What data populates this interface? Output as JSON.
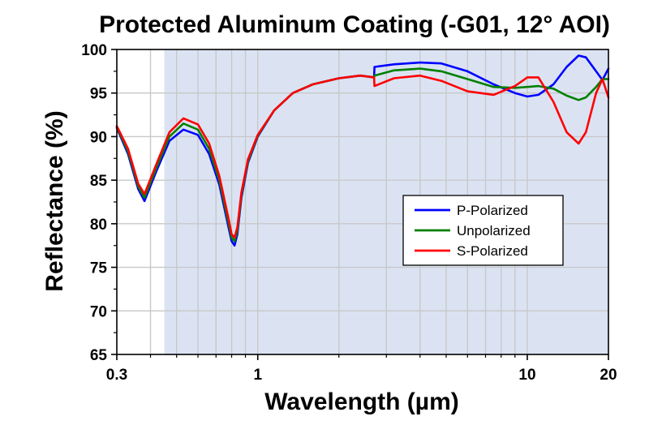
{
  "chart_data": {
    "type": "line",
    "title": "Protected Aluminum Coating (-G01, 12° AOI)",
    "xlabel": "Wavelength (µm)",
    "ylabel": "Reflectance (%)",
    "x_scale": "log",
    "xlim": [
      0.3,
      20
    ],
    "ylim": [
      65,
      100
    ],
    "x_ticks": [
      0.3,
      1,
      10,
      20
    ],
    "x_tick_labels": [
      "0.3",
      "1",
      "10",
      "20"
    ],
    "y_ticks": [
      65,
      70,
      75,
      80,
      85,
      90,
      95,
      100
    ],
    "y_tick_labels": [
      "65",
      "70",
      "75",
      "80",
      "85",
      "90",
      "95",
      "100"
    ],
    "grid": true,
    "shaded_region": {
      "x_from": 0.45,
      "x_to": 20,
      "color": "#dbe3f3"
    },
    "legend_position": "center-right",
    "series": [
      {
        "name": "P-Polarized",
        "color": "#0000ff",
        "x": [
          0.3,
          0.33,
          0.36,
          0.38,
          0.42,
          0.47,
          0.53,
          0.6,
          0.66,
          0.72,
          0.78,
          0.8,
          0.82,
          0.84,
          0.87,
          0.92,
          1.0,
          1.15,
          1.35,
          1.6,
          2.0,
          2.4,
          2.7,
          2.71,
          3.2,
          4.0,
          4.8,
          6.0,
          7.5,
          9.0,
          10.0,
          11.0,
          12.5,
          14.0,
          15.5,
          16.5,
          18.0,
          19.0,
          20.0
        ],
        "y": [
          91.0,
          88.0,
          84.0,
          82.6,
          86.0,
          89.5,
          90.8,
          90.2,
          88.0,
          84.5,
          79.5,
          78.0,
          77.5,
          78.8,
          83.0,
          87.0,
          90.0,
          93.0,
          95.0,
          96.0,
          96.7,
          97.0,
          96.8,
          98.0,
          98.3,
          98.5,
          98.4,
          97.5,
          96.0,
          95.0,
          94.6,
          94.8,
          96.0,
          98.0,
          99.3,
          99.1,
          97.5,
          96.5,
          97.8
        ]
      },
      {
        "name": "Unpolarized",
        "color": "#008000",
        "x": [
          0.3,
          0.33,
          0.36,
          0.38,
          0.42,
          0.47,
          0.53,
          0.6,
          0.66,
          0.72,
          0.78,
          0.8,
          0.82,
          0.84,
          0.87,
          0.92,
          1.0,
          1.15,
          1.35,
          1.6,
          2.0,
          2.4,
          2.7,
          2.71,
          3.2,
          4.0,
          4.8,
          6.0,
          7.5,
          9.0,
          10.0,
          11.0,
          12.5,
          14.0,
          15.5,
          16.5,
          18.0,
          19.0,
          20.0
        ],
        "y": [
          91.1,
          88.3,
          84.3,
          83.0,
          86.4,
          90.0,
          91.5,
          90.8,
          88.6,
          85.0,
          80.0,
          78.4,
          78.0,
          79.2,
          83.3,
          87.2,
          90.1,
          93.0,
          95.0,
          96.0,
          96.7,
          97.0,
          96.8,
          97.0,
          97.6,
          97.8,
          97.5,
          96.6,
          95.7,
          95.6,
          95.7,
          95.8,
          95.5,
          94.7,
          94.2,
          94.5,
          95.7,
          96.6,
          96.6
        ]
      },
      {
        "name": "S-Polarized",
        "color": "#ff0000",
        "x": [
          0.3,
          0.33,
          0.36,
          0.38,
          0.42,
          0.47,
          0.53,
          0.6,
          0.66,
          0.72,
          0.78,
          0.8,
          0.82,
          0.84,
          0.87,
          0.92,
          1.0,
          1.15,
          1.35,
          1.6,
          2.0,
          2.4,
          2.7,
          2.71,
          3.2,
          4.0,
          4.8,
          6.0,
          7.5,
          9.0,
          10.0,
          11.0,
          12.5,
          14.0,
          15.5,
          16.5,
          18.0,
          19.0,
          20.0
        ],
        "y": [
          91.2,
          88.6,
          84.6,
          83.4,
          86.8,
          90.5,
          92.1,
          91.4,
          89.2,
          85.5,
          80.5,
          78.8,
          78.4,
          79.6,
          83.6,
          87.4,
          90.2,
          93.0,
          95.0,
          96.0,
          96.7,
          97.0,
          96.8,
          95.8,
          96.7,
          97.0,
          96.4,
          95.2,
          94.8,
          95.8,
          96.8,
          96.8,
          94.0,
          90.5,
          89.2,
          90.5,
          95.0,
          96.6,
          94.5
        ]
      }
    ]
  }
}
